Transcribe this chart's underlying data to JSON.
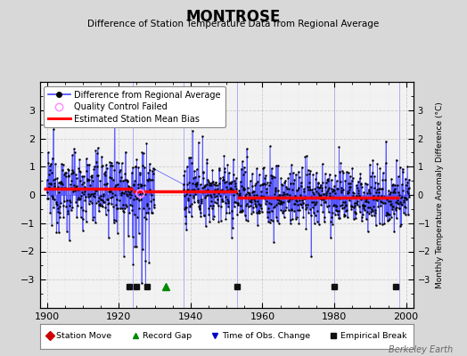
{
  "title": "MONTROSE",
  "subtitle": "Difference of Station Temperature Data from Regional Average",
  "ylabel_right": "Monthly Temperature Anomaly Difference (°C)",
  "xlim": [
    1898,
    2002
  ],
  "ylim": [
    -4,
    4
  ],
  "yticks": [
    -3,
    -2,
    -1,
    0,
    1,
    2,
    3
  ],
  "xticks": [
    1900,
    1920,
    1940,
    1960,
    1980,
    2000
  ],
  "background_color": "#d8d8d8",
  "plot_bg_color": "#f2f2f2",
  "line_color": "#4444ff",
  "dot_color": "#000000",
  "bias_color": "#ff0000",
  "qc_color": "#ff88ff",
  "watermark": "Berkeley Earth",
  "seed": 12345,
  "bias_segments": [
    {
      "start": 1899,
      "end": 1924,
      "value": 0.22
    },
    {
      "start": 1924,
      "end": 1938,
      "value": 0.12
    },
    {
      "start": 1938,
      "end": 1953,
      "value": 0.12
    },
    {
      "start": 1953,
      "end": 1998,
      "value": -0.08
    }
  ],
  "break_years": [
    1924,
    1938,
    1953,
    1980,
    1998
  ],
  "empirical_break_years": [
    1923,
    1925,
    1928,
    1953,
    1980,
    1997
  ],
  "record_gap_years": [
    1933
  ],
  "station_move_years": [],
  "tobs_years": [],
  "gap_start": 1930,
  "gap_end": 1937,
  "qc_year": 1926
}
